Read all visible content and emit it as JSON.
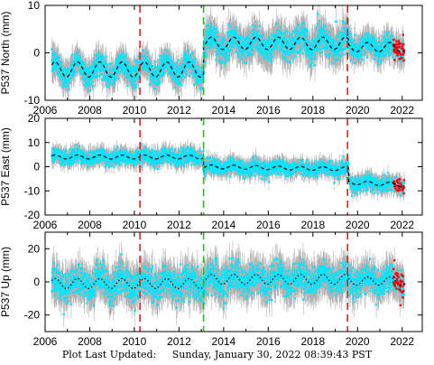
{
  "footer": {
    "label": "Plot Last Updated:",
    "timestamp": "Sunday, January 30, 2022 08:39:43 PST"
  },
  "colors": {
    "data": "#00e5ff",
    "error_bars": "#b0b0b0",
    "model": "#000000",
    "recent": "#ff0000",
    "event_red": "#e02020",
    "event_green": "#22c022"
  },
  "chart_data": [
    {
      "type": "scatter",
      "ylabel": "P537 North (mm)",
      "xlim": [
        2006,
        2022.9
      ],
      "ylim": [
        -10,
        10
      ],
      "xticks": [
        2006,
        2008,
        2010,
        2012,
        2014,
        2016,
        2018,
        2020,
        2022
      ],
      "yticks": [
        -10,
        0,
        10
      ],
      "show_xtick_labels": true,
      "model_style": "dashed",
      "segments": [
        {
          "x_start": 2006.3,
          "x_end": 2013.1,
          "mean": -3.5,
          "amplitude": 1.6,
          "scatter": 1.2
        },
        {
          "x_start": 2013.1,
          "x_end": 2019.6,
          "mean": 2.0,
          "amplitude": 1.3,
          "scatter": 1.5
        },
        {
          "x_start": 2019.6,
          "x_end": 2022.1,
          "mean": 1.2,
          "amplitude": 1.0,
          "scatter": 1.2
        }
      ],
      "offsets": [
        {
          "x": 2010.25,
          "color": "red"
        },
        {
          "x": 2013.1,
          "color": "green"
        },
        {
          "x": 2019.55,
          "color": "red"
        }
      ]
    },
    {
      "type": "scatter",
      "ylabel": "P537 East (mm)",
      "xlim": [
        2006,
        2022.9
      ],
      "ylim": [
        -20,
        20
      ],
      "xticks": [
        2006,
        2008,
        2010,
        2012,
        2014,
        2016,
        2018,
        2020,
        2022
      ],
      "yticks": [
        -20,
        -10,
        0,
        10,
        20
      ],
      "show_xtick_labels": true,
      "model_style": "dashed",
      "segments": [
        {
          "x_start": 2006.3,
          "x_end": 2013.1,
          "mean": 4.0,
          "amplitude": 0.8,
          "scatter": 1.5
        },
        {
          "x_start": 2013.1,
          "x_end": 2019.6,
          "mean": 0.0,
          "amplitude": 0.8,
          "scatter": 1.5,
          "trend": -0.15
        },
        {
          "x_start": 2019.6,
          "x_end": 2022.1,
          "mean": -6.5,
          "amplitude": 0.8,
          "scatter": 1.5,
          "trend": -0.4
        }
      ],
      "offsets": [
        {
          "x": 2010.25,
          "color": "red"
        },
        {
          "x": 2013.1,
          "color": "green"
        },
        {
          "x": 2019.55,
          "color": "red"
        }
      ]
    },
    {
      "type": "scatter",
      "ylabel": "P537 Up (mm)",
      "xlim": [
        2006,
        2022.9
      ],
      "ylim": [
        -30,
        30
      ],
      "xticks": [
        2006,
        2008,
        2010,
        2012,
        2014,
        2016,
        2018,
        2020,
        2022
      ],
      "yticks": [
        -20,
        0,
        20
      ],
      "show_xtick_labels": true,
      "model_style": "dotted",
      "segments": [
        {
          "x_start": 2006.3,
          "x_end": 2013.1,
          "mean": -1.0,
          "amplitude": 3.0,
          "scatter": 4.5
        },
        {
          "x_start": 2013.1,
          "x_end": 2019.6,
          "mean": 1.5,
          "amplitude": 3.0,
          "scatter": 4.5
        },
        {
          "x_start": 2019.6,
          "x_end": 2022.1,
          "mean": 0.5,
          "amplitude": 2.5,
          "scatter": 4.0
        }
      ],
      "offsets": [
        {
          "x": 2010.25,
          "color": "red"
        },
        {
          "x": 2013.1,
          "color": "green"
        },
        {
          "x": 2019.55,
          "color": "red"
        }
      ]
    }
  ]
}
